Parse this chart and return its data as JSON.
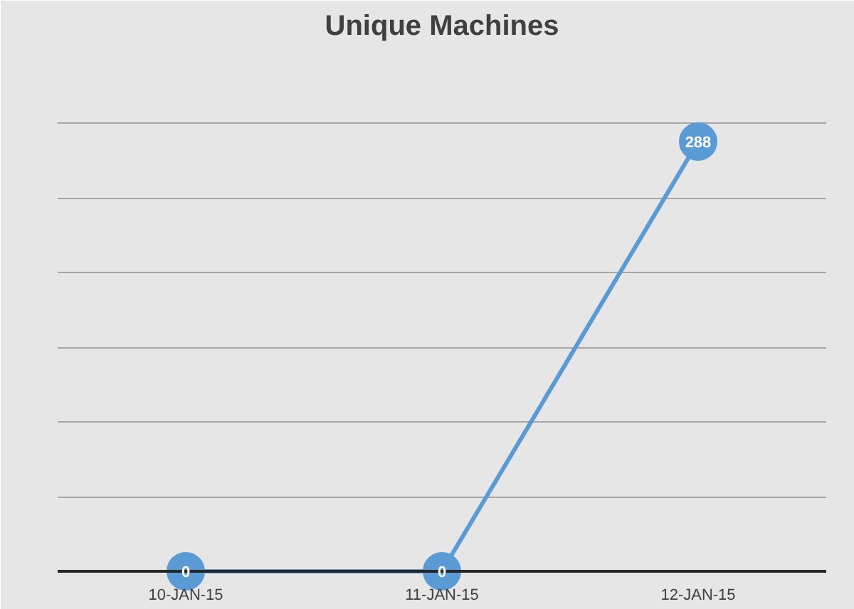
{
  "chart_data": {
    "type": "line",
    "title": "Unique Machines",
    "categories": [
      "10-JAN-15",
      "11-JAN-15",
      "12-JAN-15"
    ],
    "series": [
      {
        "color": "#5b9bd5",
        "values": [
          0,
          0,
          288
        ]
      }
    ],
    "ylim": [
      0,
      350
    ],
    "yticks": [
      {
        "value": 0,
        "label": null
      },
      {
        "value": 50,
        "label": null
      },
      {
        "value": 100,
        "label": null
      },
      {
        "value": 150,
        "label": null
      },
      {
        "value": 200,
        "label": null
      },
      {
        "value": 250,
        "label": null
      },
      {
        "value": 300,
        "label": null
      },
      {
        "value": 350,
        "label": null
      }
    ],
    "tick_labels": "x",
    "grid": "y",
    "data_labels": true,
    "marker": "circle",
    "line_style": "solid"
  }
}
